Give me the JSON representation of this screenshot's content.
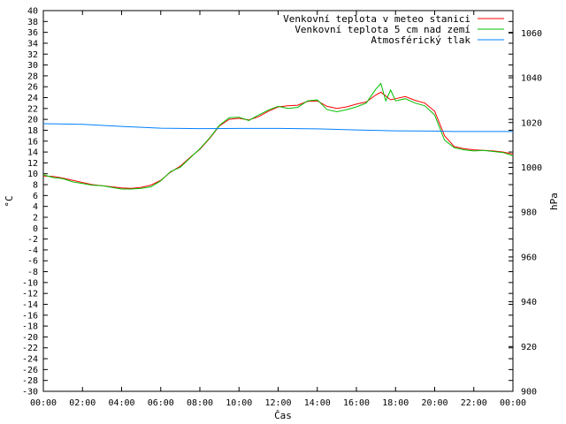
{
  "chart_data": {
    "type": "line",
    "xlabel": "Čas",
    "ylabel": "°C",
    "y2label": "hPa",
    "x_ticks": [
      "00:00",
      "02:00",
      "04:00",
      "06:00",
      "08:00",
      "10:00",
      "12:00",
      "14:00",
      "16:00",
      "18:00",
      "20:00",
      "22:00",
      "00:00"
    ],
    "xlim": [
      0,
      24
    ],
    "ylim": [
      -30,
      40
    ],
    "y_ticks": [
      40,
      38,
      36,
      34,
      32,
      30,
      28,
      26,
      24,
      22,
      20,
      18,
      16,
      14,
      12,
      10,
      8,
      6,
      4,
      2,
      0,
      -2,
      -4,
      -6,
      -8,
      -10,
      -12,
      -14,
      -16,
      -18,
      -20,
      -22,
      -24,
      -26,
      -28,
      -30
    ],
    "y2lim": [
      900,
      1070
    ],
    "y2_ticks": [
      900,
      920,
      940,
      960,
      980,
      1000,
      1020,
      1040,
      1060
    ],
    "grid": false,
    "legend_position": "top-right",
    "series": [
      {
        "name": "Venkovní teplota v meteo stanici",
        "color": "#ff0000",
        "axis": "left",
        "x": [
          0,
          0.5,
          1,
          1.5,
          2,
          2.5,
          3,
          3.5,
          4,
          4.5,
          5,
          5.5,
          6,
          6.5,
          7,
          7.5,
          8,
          8.5,
          9,
          9.5,
          10,
          10.5,
          11,
          11.5,
          12,
          12.5,
          13,
          13.5,
          14,
          14.5,
          15,
          15.5,
          16,
          16.5,
          17,
          17.25,
          17.5,
          17.75,
          18,
          18.5,
          19,
          19.5,
          20,
          20.5,
          21,
          21.5,
          22,
          22.5,
          23,
          23.5,
          24
        ],
        "y": [
          9.6,
          9.5,
          9.2,
          8.8,
          8.4,
          8.0,
          7.8,
          7.6,
          7.4,
          7.3,
          7.5,
          7.9,
          8.8,
          10.3,
          11.4,
          13.0,
          14.5,
          16.5,
          18.8,
          20.0,
          20.2,
          19.9,
          20.5,
          21.5,
          22.3,
          22.5,
          22.6,
          23.3,
          23.4,
          22.4,
          22.0,
          22.3,
          22.8,
          23.2,
          24.5,
          25.0,
          24.3,
          23.6,
          23.8,
          24.2,
          23.5,
          23.0,
          21.5,
          17.0,
          15.0,
          14.6,
          14.4,
          14.3,
          14.2,
          14.0,
          13.6
        ]
      },
      {
        "name": "Venkovní teplota 5 cm nad zemí",
        "color": "#00c000",
        "axis": "left",
        "x": [
          0,
          0.5,
          1,
          1.5,
          2,
          2.5,
          3,
          3.5,
          4,
          4.5,
          5,
          5.5,
          6,
          6.5,
          7,
          7.5,
          8,
          8.5,
          9,
          9.5,
          10,
          10.5,
          11,
          11.5,
          12,
          12.5,
          13,
          13.5,
          14,
          14.5,
          15,
          15.5,
          16,
          16.5,
          17,
          17.25,
          17.5,
          17.75,
          18,
          18.5,
          19,
          19.5,
          20,
          20.5,
          21,
          21.5,
          22,
          22.5,
          23,
          23.5,
          24
        ],
        "y": [
          9.8,
          9.3,
          9.1,
          8.5,
          8.2,
          7.9,
          7.8,
          7.5,
          7.2,
          7.2,
          7.3,
          7.6,
          8.7,
          10.4,
          11.2,
          12.9,
          14.6,
          16.6,
          18.9,
          20.3,
          20.4,
          19.8,
          20.8,
          21.7,
          22.4,
          22.0,
          22.2,
          23.4,
          23.6,
          21.8,
          21.4,
          21.8,
          22.3,
          23.0,
          25.6,
          26.6,
          23.4,
          25.4,
          23.4,
          23.8,
          23.0,
          22.5,
          20.8,
          16.2,
          14.8,
          14.4,
          14.2,
          14.3,
          14.1,
          13.9,
          13.3
        ]
      },
      {
        "name": "Atmosférický tlak",
        "color": "#0080ff",
        "axis": "right",
        "x": [
          0,
          2,
          4,
          6,
          8,
          10,
          12,
          14,
          16,
          18,
          20,
          21,
          22,
          24
        ],
        "y": [
          1019.5,
          1019.2,
          1018.3,
          1017.5,
          1017.3,
          1017.4,
          1017.4,
          1017.2,
          1016.7,
          1016.3,
          1016.2,
          1016.0,
          1016.0,
          1016.0
        ]
      }
    ]
  }
}
